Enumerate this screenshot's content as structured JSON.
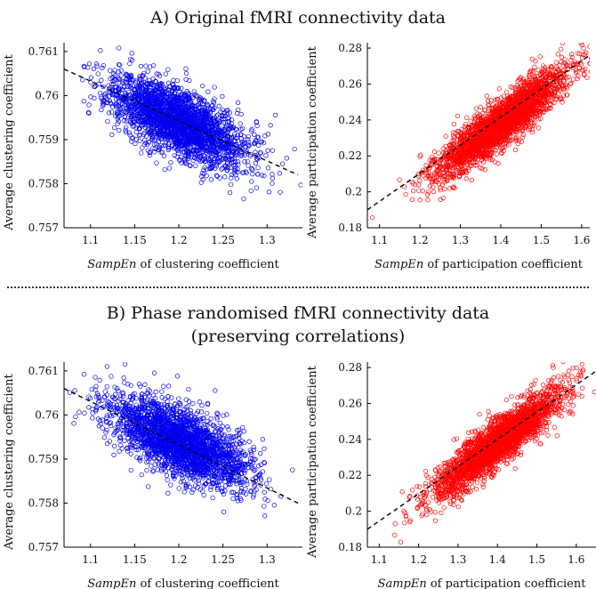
{
  "headings": {
    "section_a": "A) Original fMRI connectivity data",
    "section_b_line1": "B) Phase randomised fMRI connectivity data",
    "section_b_line2": "(preserving correlations)"
  },
  "chart_data": [
    {
      "id": "a_clustering",
      "type": "scatter",
      "color": "#0000ee",
      "title": "",
      "xlabel_italic": "SampEn",
      "xlabel_rest": " of clustering coefficient",
      "ylabel": "Average clustering coefficient",
      "xlim": [
        1.07,
        1.34
      ],
      "ylim": [
        0.757,
        0.7612
      ],
      "xticks": [
        1.1,
        1.15,
        1.2,
        1.25,
        1.3
      ],
      "xticklabels": [
        "1.1",
        "1.15",
        "1.2",
        "1.25",
        "1.3"
      ],
      "yticks": [
        0.757,
        0.758,
        0.759,
        0.76,
        0.761
      ],
      "yticklabels": [
        "0.757",
        "0.758",
        "0.759",
        "0.76",
        "0.761"
      ],
      "cloud": {
        "n": 2600,
        "cx": 1.2,
        "cy": 0.7594,
        "sx": 0.038,
        "slope": -0.0085,
        "resid": 0.00038,
        "seed": 11
      },
      "fit_line": {
        "x": [
          1.07,
          1.335
        ],
        "y": [
          0.7606,
          0.7582
        ]
      }
    },
    {
      "id": "a_participation",
      "type": "scatter",
      "color": "#ff0000",
      "title": "",
      "xlabel_italic": "SampEn",
      "xlabel_rest": " of participation coefficient",
      "ylabel": "Average participation coefficient",
      "xlim": [
        1.07,
        1.62
      ],
      "ylim": [
        0.18,
        0.283
      ],
      "xticks": [
        1.1,
        1.2,
        1.3,
        1.4,
        1.5,
        1.6
      ],
      "xticklabels": [
        "1.1",
        "1.2",
        "1.3",
        "1.4",
        "1.5",
        "1.6"
      ],
      "yticks": [
        0.18,
        0.2,
        0.22,
        0.24,
        0.26,
        0.28
      ],
      "yticklabels": [
        "0.18",
        "0.2",
        "0.22",
        "0.24",
        "0.26",
        "0.28"
      ],
      "cloud": {
        "n": 2600,
        "cx": 1.4,
        "cy": 0.238,
        "sx": 0.08,
        "slope": 0.165,
        "resid": 0.0065,
        "seed": 23
      },
      "fit_line": {
        "x": [
          1.07,
          1.62
        ],
        "y": [
          0.19,
          0.276
        ]
      }
    },
    {
      "id": "b_clustering",
      "type": "scatter",
      "color": "#0000ee",
      "title": "",
      "xlabel_italic": "SampEn",
      "xlabel_rest": " of clustering coefficient",
      "ylabel": "Average clustering coefficient",
      "xlim": [
        1.07,
        1.34
      ],
      "ylim": [
        0.757,
        0.7612
      ],
      "xticks": [
        1.1,
        1.15,
        1.2,
        1.25,
        1.3
      ],
      "xticklabels": [
        "1.1",
        "1.15",
        "1.2",
        "1.25",
        "1.3"
      ],
      "yticks": [
        0.757,
        0.758,
        0.759,
        0.76,
        0.761
      ],
      "yticklabels": [
        "0.757",
        "0.758",
        "0.759",
        "0.76",
        "0.761"
      ],
      "cloud": {
        "n": 2600,
        "cx": 1.2,
        "cy": 0.7594,
        "sx": 0.038,
        "slope": -0.0085,
        "resid": 0.00038,
        "seed": 37
      },
      "fit_line": {
        "x": [
          1.07,
          1.335
        ],
        "y": [
          0.7606,
          0.758
        ]
      }
    },
    {
      "id": "b_participation",
      "type": "scatter",
      "color": "#ff0000",
      "title": "",
      "xlabel_italic": "SampEn",
      "xlabel_rest": " of participation coefficient",
      "ylabel": "Average participation coefficient",
      "xlim": [
        1.07,
        1.65
      ],
      "ylim": [
        0.18,
        0.283
      ],
      "xticks": [
        1.1,
        1.2,
        1.3,
        1.4,
        1.5,
        1.6
      ],
      "xticklabels": [
        "1.1",
        "1.2",
        "1.3",
        "1.4",
        "1.5",
        "1.6"
      ],
      "yticks": [
        0.18,
        0.2,
        0.22,
        0.24,
        0.26,
        0.28
      ],
      "yticklabels": [
        "0.18",
        "0.2",
        "0.22",
        "0.24",
        "0.26",
        "0.28"
      ],
      "cloud": {
        "n": 2600,
        "cx": 1.4,
        "cy": 0.238,
        "sx": 0.08,
        "slope": 0.165,
        "resid": 0.0065,
        "seed": 51
      },
      "fit_line": {
        "x": [
          1.07,
          1.65
        ],
        "y": [
          0.19,
          0.278
        ]
      }
    }
  ]
}
